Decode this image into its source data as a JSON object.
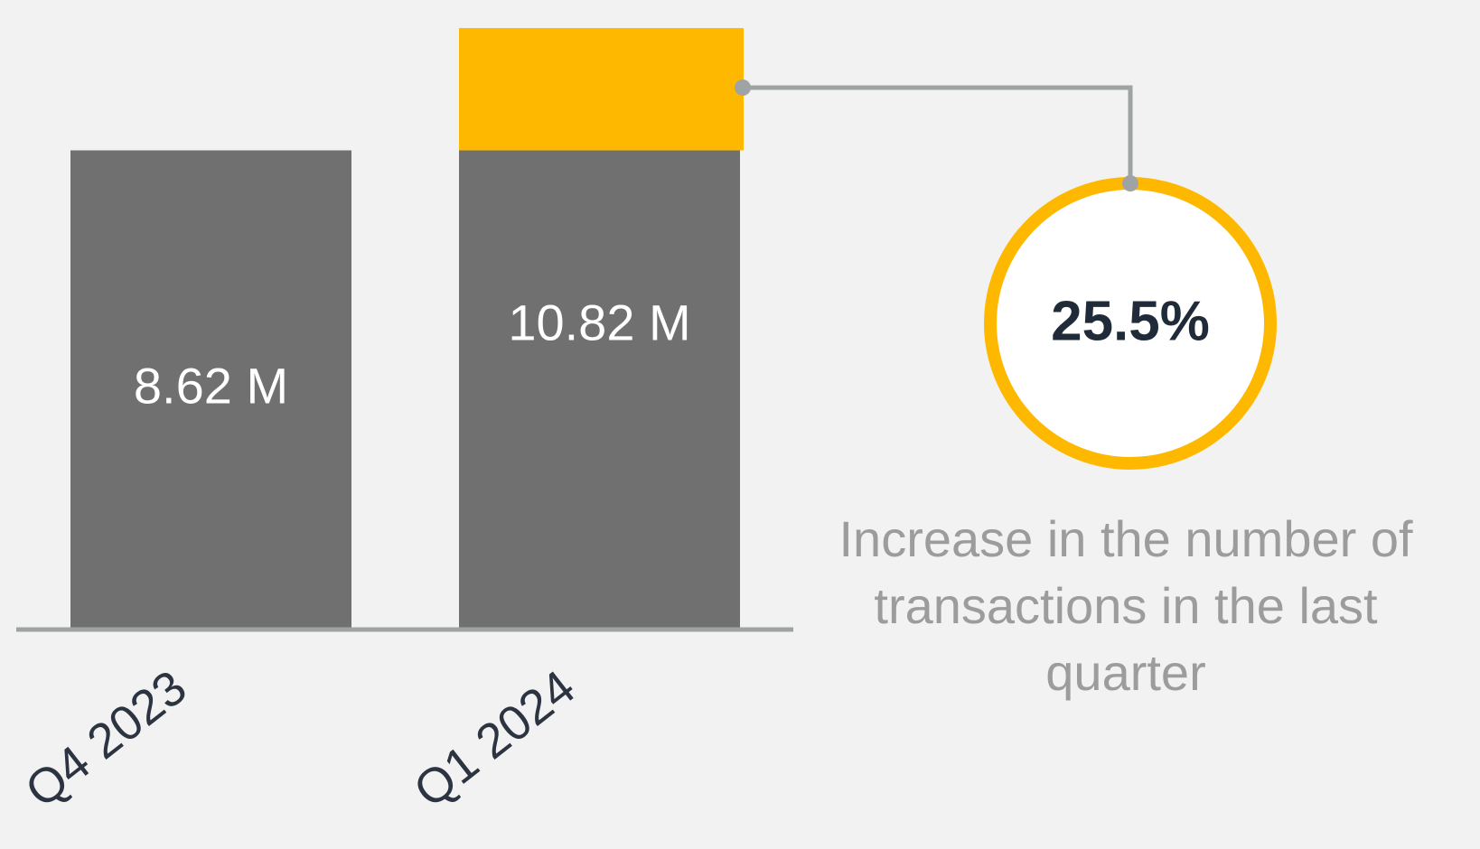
{
  "chart_data": {
    "type": "bar",
    "categories": [
      "Q4 2023",
      "Q1 2024"
    ],
    "values": [
      8.62,
      10.82
    ],
    "value_labels": [
      "8.62 M",
      "10.82 M"
    ],
    "color": "#6f706f",
    "highlight_color": "#ffb800",
    "ylim": [
      0,
      11
    ],
    "annotation": "25.5%",
    "annotation_text": "Increase in the number of transactions in the last quarter"
  }
}
